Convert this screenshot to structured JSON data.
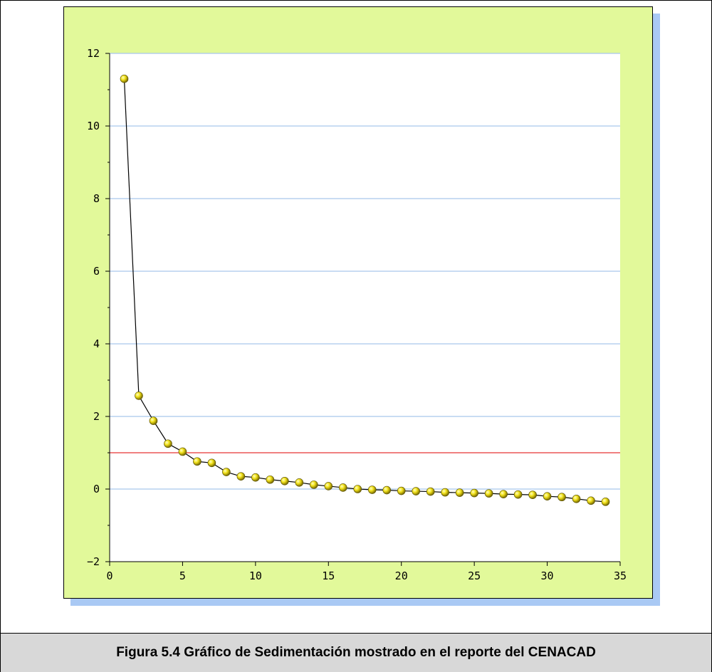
{
  "caption": "Figura 5.4 Gráfico de Sedimentación mostrado en el reporte del CENACAD",
  "colors": {
    "panel_bg": "#e2f99a",
    "plot_bg": "#ffffff",
    "gridline": "#a9c7ec",
    "reference_line": "#f08080",
    "marker": "#d8c800",
    "series_line": "#000000",
    "shadow": "#a9c9f4"
  },
  "chart_data": {
    "type": "line",
    "title": "",
    "xlabel": "",
    "ylabel": "",
    "xlim": [
      0,
      35
    ],
    "ylim": [
      -2,
      12
    ],
    "x_ticks": [
      0,
      5,
      10,
      15,
      20,
      25,
      30,
      35
    ],
    "y_ticks": [
      -2,
      0,
      2,
      4,
      6,
      8,
      10,
      12
    ],
    "grid": "horizontal",
    "reference_line": {
      "y": 1
    },
    "series": [
      {
        "x": [
          1,
          2,
          3,
          4,
          5,
          6,
          7,
          8,
          9,
          10,
          11,
          12,
          13,
          14,
          15,
          16,
          17,
          18,
          19,
          20,
          21,
          22,
          23,
          24,
          25,
          26,
          27,
          28,
          29,
          30,
          31,
          32,
          33,
          34
        ],
        "values": [
          11.3,
          2.57,
          1.88,
          1.25,
          1.03,
          0.76,
          0.72,
          0.47,
          0.35,
          0.32,
          0.26,
          0.22,
          0.18,
          0.12,
          0.08,
          0.04,
          0.0,
          -0.02,
          -0.03,
          -0.05,
          -0.06,
          -0.07,
          -0.09,
          -0.1,
          -0.11,
          -0.12,
          -0.14,
          -0.15,
          -0.16,
          -0.2,
          -0.22,
          -0.27,
          -0.32,
          -0.35
        ]
      }
    ]
  }
}
